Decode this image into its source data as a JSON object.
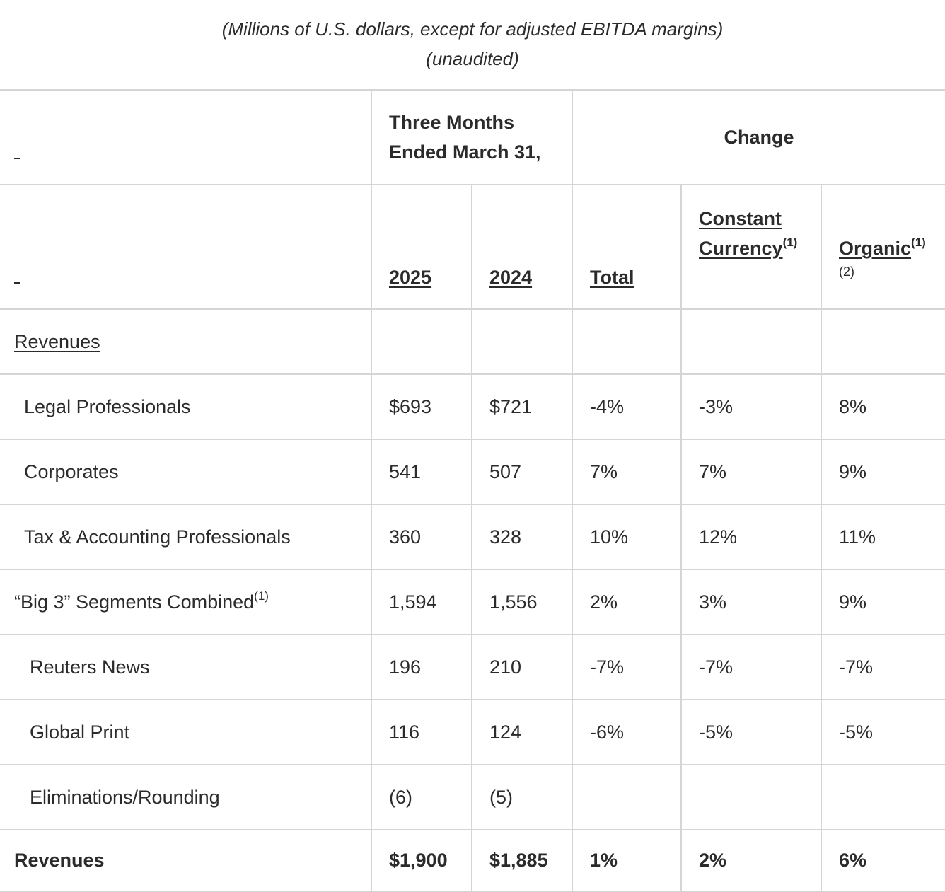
{
  "caption": {
    "line1": "(Millions of U.S. dollars, except for adjusted EBITDA margins)",
    "line2": "(unaudited)"
  },
  "header": {
    "period_line1": "Three Months",
    "period_line2": "Ended March 31,",
    "change": "Change",
    "year_2025": "2025",
    "year_2024": "2024",
    "total": "Total",
    "constant_line1": "Constant",
    "constant_line2": "Currency",
    "organic": "Organic",
    "footnote_1": "(1)",
    "footnote_2": "(2)"
  },
  "section_label": "Revenues",
  "rows": [
    {
      "label": "Legal Professionals",
      "y2025": "$693",
      "y2024": "$721",
      "total": "-4%",
      "constant": "-3%",
      "organic": "8%"
    },
    {
      "label": "Corporates",
      "y2025": "541",
      "y2024": "507",
      "total": "7%",
      "constant": "7%",
      "organic": "9%"
    },
    {
      "label": "Tax & Accounting Professionals",
      "y2025": "360",
      "y2024": "328",
      "total": "10%",
      "constant": "12%",
      "organic": "11%"
    },
    {
      "label": "“Big 3” Segments Combined",
      "label_footnote": "(1)",
      "y2025": "1,594",
      "y2024": "1,556",
      "total": "2%",
      "constant": "3%",
      "organic": "9%"
    },
    {
      "label": "Reuters News",
      "y2025": "196",
      "y2024": "210",
      "total": "-7%",
      "constant": "-7%",
      "organic": "-7%"
    },
    {
      "label": "Global Print",
      "y2025": "116",
      "y2024": "124",
      "total": "-6%",
      "constant": "-5%",
      "organic": "-5%"
    },
    {
      "label": "Eliminations/Rounding",
      "y2025": "(6)",
      "y2024": "(5)",
      "total": "",
      "constant": "",
      "organic": ""
    },
    {
      "label": "Revenues",
      "y2025": "$1,900",
      "y2024": "$1,885",
      "total": "1%",
      "constant": "2%",
      "organic": "6%"
    }
  ]
}
